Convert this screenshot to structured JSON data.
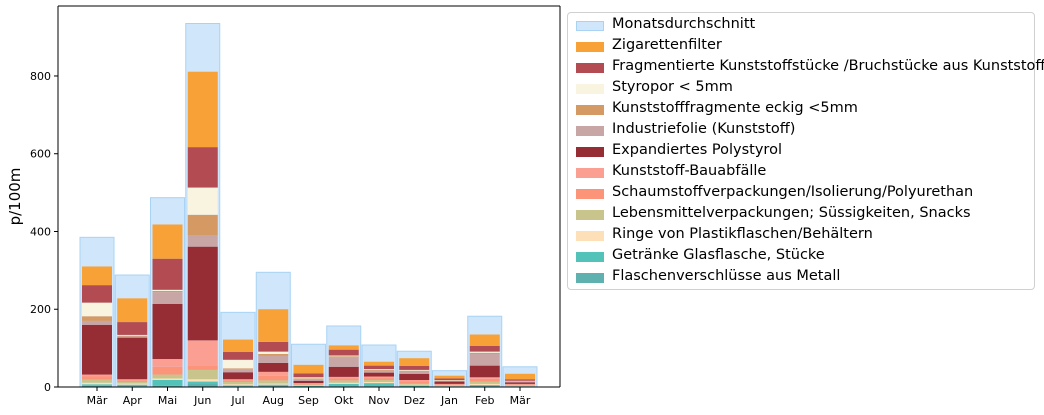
{
  "chart_data": {
    "type": "bar",
    "subtype": "stacked-overlay",
    "ylabel": "p/100m",
    "xlabel": "",
    "ylim": [
      0,
      980
    ],
    "yticks": [
      0,
      200,
      400,
      600,
      800
    ],
    "categories": [
      "Mär",
      "Apr",
      "Mai",
      "Jun",
      "Jul",
      "Aug",
      "Sep",
      "Okt",
      "Nov",
      "Dez",
      "Jan",
      "Feb",
      "Mär"
    ],
    "background_series": {
      "name": "Monatsdurchschnitt",
      "color": "#cfe6fb",
      "edge": "#a9d3f5",
      "values": [
        385,
        288,
        487,
        935,
        192,
        295,
        110,
        157,
        108,
        92,
        42,
        182,
        52
      ]
    },
    "series": [
      {
        "name": "Flaschenverschlüsse aus Metall",
        "color": "#5fb1b0",
        "values": [
          3,
          2,
          3,
          10,
          2,
          3,
          1,
          2,
          2,
          1,
          1,
          2,
          1
        ]
      },
      {
        "name": "Getränke Glasflasche, Stücke",
        "color": "#53c3b9",
        "values": [
          4,
          4,
          15,
          4,
          2,
          3,
          2,
          6,
          8,
          3,
          1,
          3,
          1
        ]
      },
      {
        "name": "Ringe von Plastikflaschen/Behältern",
        "color": "#fde0b8",
        "values": [
          4,
          3,
          4,
          6,
          3,
          3,
          1,
          3,
          3,
          2,
          1,
          3,
          1
        ]
      },
      {
        "name": "Lebensmittelverpackungen; Süssigkeiten, Snacks",
        "color": "#c8c48b",
        "values": [
          8,
          4,
          10,
          24,
          6,
          8,
          2,
          6,
          5,
          3,
          2,
          6,
          2
        ]
      },
      {
        "name": "Schaumstoffverpackungen/Isolierung/Polyurethan",
        "color": "#fb9479",
        "values": [
          8,
          4,
          20,
          10,
          4,
          12,
          2,
          5,
          5,
          6,
          2,
          7,
          2
        ]
      },
      {
        "name": "Kunststoff-Bauabfälle",
        "color": "#fb9f92",
        "values": [
          5,
          3,
          20,
          66,
          3,
          10,
          2,
          4,
          4,
          3,
          1,
          4,
          1
        ]
      },
      {
        "name": "Expandiertes Polystyrol",
        "color": "#962d35",
        "values": [
          128,
          107,
          142,
          241,
          18,
          23,
          6,
          26,
          10,
          16,
          6,
          30,
          4
        ]
      },
      {
        "name": "Industriefolie (Kunststoff)",
        "color": "#c9a6a6",
        "values": [
          10,
          3,
          30,
          30,
          8,
          18,
          4,
          25,
          5,
          6,
          2,
          30,
          2
        ]
      },
      {
        "name": "Kunststofffragmente eckig <5mm",
        "color": "#d59964",
        "values": [
          12,
          2,
          3,
          52,
          2,
          5,
          2,
          2,
          2,
          2,
          1,
          3,
          1
        ]
      },
      {
        "name": "Styropor < 5mm",
        "color": "#f8f4e0",
        "values": [
          35,
          2,
          3,
          70,
          22,
          6,
          3,
          2,
          2,
          2,
          1,
          3,
          1
        ]
      },
      {
        "name": "Fragmentierte Kunststoffstücke /Bruchstücke aus Kunststoff",
        "color": "#b24c52",
        "values": [
          45,
          33,
          80,
          104,
          20,
          25,
          10,
          15,
          9,
          10,
          4,
          15,
          4
        ]
      },
      {
        "name": "Zigarettenfilter",
        "color": "#f8a136",
        "values": [
          48,
          61,
          88,
          194,
          32,
          84,
          22,
          11,
          10,
          20,
          7,
          29,
          14
        ]
      }
    ],
    "legend": {
      "placement": "outside-right",
      "entries": [
        "Monatsdurchschnitt",
        "Zigarettenfilter",
        "Fragmentierte Kunststoffstücke /Bruchstücke aus Kunststoff",
        "Styropor < 5mm",
        "Kunststofffragmente eckig <5mm",
        "Industriefolie (Kunststoff)",
        "Expandiertes Polystyrol",
        "Kunststoff-Bauabfälle",
        "Schaumstoffverpackungen/Isolierung/Polyurethan",
        "Lebensmittelverpackungen; Süssigkeiten, Snacks",
        "Ringe von Plastikflaschen/Behältern",
        "Getränke Glasflasche, Stücke",
        "Flaschenverschlüsse aus Metall"
      ]
    },
    "grid": false
  }
}
